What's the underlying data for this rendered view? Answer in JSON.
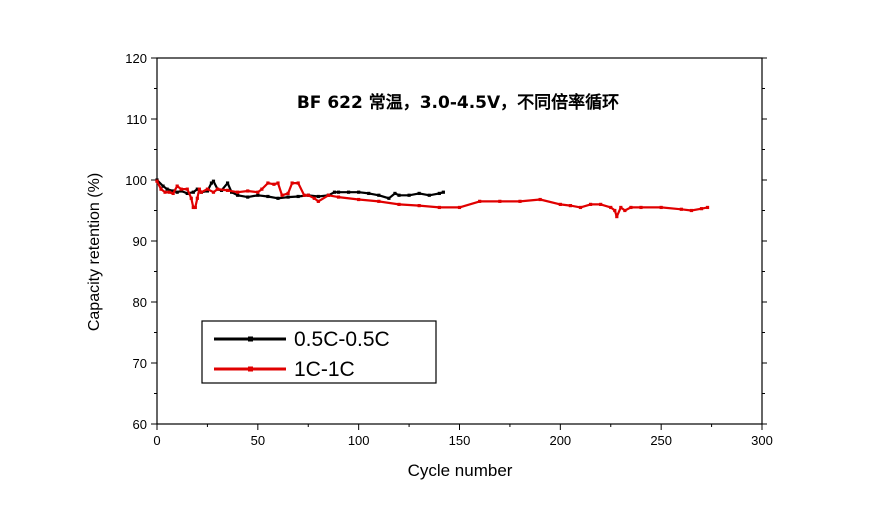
{
  "chart_data": {
    "type": "line",
    "title": "BF 622 常温，3.0-4.5V，不同倍率循环",
    "xlabel": "Cycle number",
    "ylabel": "Capacity retention (%)",
    "xlim": [
      0,
      300
    ],
    "ylim": [
      60,
      120
    ],
    "xticks": [
      0,
      50,
      100,
      150,
      200,
      250,
      300
    ],
    "yticks": [
      60,
      70,
      80,
      90,
      100,
      110,
      120
    ],
    "grid": false,
    "legend_position": "bottom-left",
    "series": [
      {
        "name": "0.5C-0.5C",
        "color": "#000000",
        "x": [
          0,
          3,
          5,
          8,
          10,
          12,
          15,
          18,
          20,
          22,
          25,
          27,
          28,
          30,
          32,
          35,
          37,
          40,
          45,
          50,
          55,
          60,
          65,
          70,
          75,
          80,
          85,
          88,
          90,
          95,
          100,
          105,
          110,
          115,
          118,
          120,
          125,
          130,
          135,
          140,
          142
        ],
        "values": [
          100,
          99,
          98.5,
          98.2,
          98,
          98.2,
          97.8,
          98,
          98.5,
          98,
          98.2,
          99.5,
          99.8,
          98.5,
          98.3,
          99.5,
          98,
          97.5,
          97.2,
          97.5,
          97.3,
          97,
          97.2,
          97.3,
          97.5,
          97.3,
          97.5,
          98,
          98,
          98,
          98,
          97.8,
          97.5,
          97,
          97.8,
          97.5,
          97.5,
          97.8,
          97.5,
          97.8,
          98
        ]
      },
      {
        "name": "1C-1C",
        "color": "#e00000",
        "x": [
          0,
          2,
          4,
          6,
          8,
          10,
          12,
          15,
          17,
          18,
          19,
          20,
          21,
          22,
          25,
          28,
          30,
          35,
          40,
          45,
          50,
          52,
          55,
          58,
          60,
          62,
          65,
          67,
          70,
          73,
          75,
          78,
          80,
          85,
          90,
          100,
          110,
          120,
          130,
          140,
          150,
          160,
          170,
          180,
          190,
          200,
          205,
          210,
          215,
          220,
          225,
          227,
          228,
          230,
          232,
          235,
          240,
          250,
          260,
          265,
          270,
          273
        ],
        "values": [
          99.8,
          98.5,
          98,
          98,
          97.8,
          99,
          98.5,
          98.5,
          97,
          95.5,
          95.5,
          97,
          98.5,
          98,
          98.5,
          98,
          98.5,
          98.3,
          98,
          98.2,
          98,
          98.5,
          99.5,
          99.3,
          99.5,
          97.5,
          97.8,
          99.5,
          99.5,
          97.5,
          97.5,
          97,
          96.5,
          97.5,
          97.2,
          96.8,
          96.5,
          96,
          95.8,
          95.5,
          95.5,
          96.5,
          96.5,
          96.5,
          96.8,
          96,
          95.8,
          95.5,
          96,
          96,
          95.5,
          95,
          94,
          95.5,
          95,
          95.5,
          95.5,
          95.5,
          95.2,
          95,
          95.3,
          95.5
        ]
      }
    ]
  }
}
